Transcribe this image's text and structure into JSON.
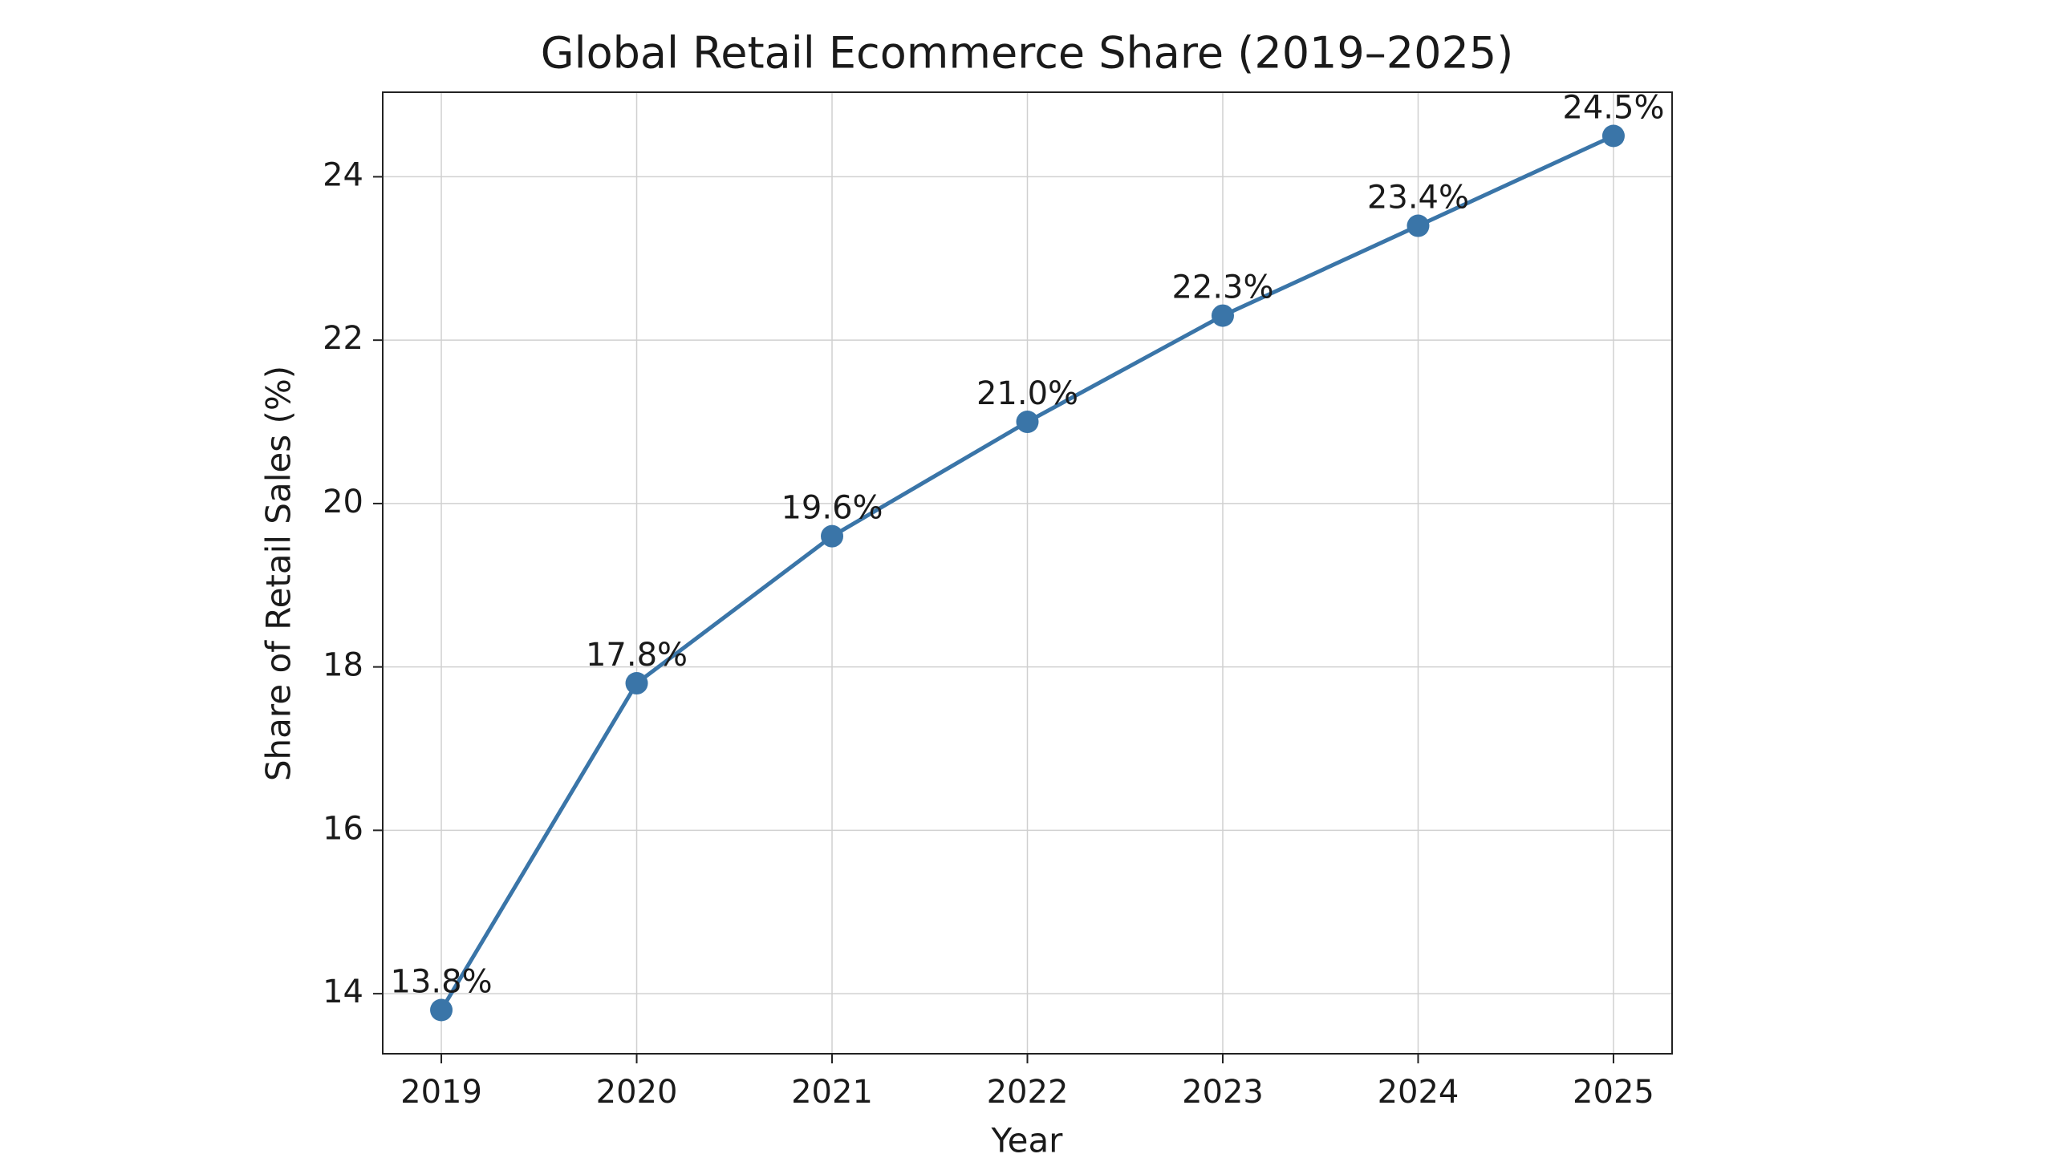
{
  "chart_data": {
    "type": "line",
    "title": "Global Retail Ecommerce Share (2019–2025)",
    "x_label": "Year",
    "y_label": "Share of Retail Sales (%)",
    "x": [
      2019,
      2020,
      2021,
      2022,
      2023,
      2024,
      2025
    ],
    "series": [
      {
        "color": "#3a75a8",
        "values": [
          13.8,
          17.8,
          19.6,
          21.0,
          22.3,
          23.4,
          24.5
        ],
        "value_labels": [
          "13.8%",
          "17.8%",
          "19.6%",
          "21.0%",
          "22.3%",
          "23.4%",
          "24.5%"
        ]
      }
    ],
    "xlim": [
      2018.7,
      2025.3
    ],
    "xticks": [
      2019,
      2020,
      2021,
      2022,
      2023,
      2024,
      2025
    ],
    "ylim": [
      13.265,
      25.035
    ],
    "yticks": [
      14,
      16,
      18,
      20,
      22,
      24
    ],
    "grid": true
  }
}
